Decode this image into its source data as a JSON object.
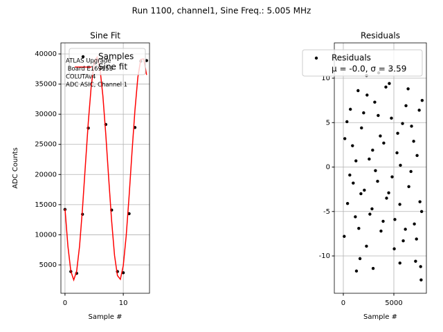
{
  "title": "Run 1100, channel1, Sine Freq.: 5.005 MHz",
  "chart_data": [
    {
      "type": "scatter",
      "title": "Sine Fit",
      "xlabel": "Sample #",
      "ylabel": "ADC Counts",
      "xlim": [
        -0.7,
        14.5
      ],
      "ylim": [
        295,
        41836
      ],
      "xticks": [
        0,
        10
      ],
      "yticks": [
        5000,
        10000,
        15000,
        20000,
        25000,
        30000,
        35000,
        40000
      ],
      "grid": true,
      "legend": "upper right",
      "annotation": [
        "ATLAS Upgrade",
        " Board E169153",
        "COLUTAv4",
        "ADC ASIC, Channel 1"
      ],
      "series": [
        {
          "name": "Samples",
          "kind": "scatter",
          "color": "#000000",
          "x": [
            0,
            1,
            2,
            3,
            4,
            5,
            6,
            7,
            8,
            9,
            10,
            11,
            12,
            13,
            14
          ],
          "values": [
            14200,
            3900,
            3600,
            13400,
            27700,
            38500,
            37800,
            28300,
            14100,
            3900,
            3700,
            13500,
            27800,
            38800,
            38900
          ]
        },
        {
          "name": "Sine fit",
          "kind": "line",
          "color": "#ff0000",
          "x": [
            0,
            0.5,
            1,
            1.5,
            2,
            2.5,
            3,
            3.5,
            4,
            4.5,
            5,
            5.5,
            6,
            6.5,
            7,
            7.5,
            8,
            8.5,
            9,
            9.5,
            10,
            10.5,
            11,
            11.5,
            12,
            12.5,
            13,
            13.5,
            14
          ],
          "values": [
            14321,
            8124,
            3962,
            2500,
            3962,
            8124,
            14321,
            21555,
            28696,
            34653,
            38464,
            39463,
            37595,
            33044,
            26643,
            19335,
            12323,
            6570,
            3221,
            2611,
            4887,
            9808,
            16430,
            23775,
            30657,
            36133,
            39093,
            39186,
            36522
          ]
        }
      ]
    },
    {
      "type": "scatter",
      "title": "Residuals",
      "xlabel": "Sample #",
      "xlim": [
        -890,
        8219
      ],
      "ylim": [
        -14.2,
        13.97
      ],
      "xticks": [
        0,
        5000
      ],
      "yticks": [
        -10,
        -5,
        0,
        5,
        10
      ],
      "grid": true,
      "legend": "upper right",
      "legend_text": "μ = -0.0, σ = 3.59",
      "series": [
        {
          "name": "Residuals",
          "kind": "scatter",
          "color": "#000000",
          "x": [
            150,
            420,
            700,
            980,
            1250,
            1530,
            1800,
            2080,
            2350,
            2630,
            2900,
            3180,
            3450,
            3730,
            4000,
            4280,
            4550,
            4830,
            5100,
            5380,
            5650,
            5930,
            6200,
            6480,
            6750,
            7030,
            7300,
            7580,
            7800,
            90,
            360,
            640,
            910,
            1190,
            1460,
            1740,
            2010,
            2290,
            2560,
            2840,
            3110,
            3390,
            3660,
            3940,
            4210,
            4490,
            4760,
            5040,
            5310,
            5590,
            5860,
            6140,
            6410,
            6690,
            6960,
            7240,
            7510,
            7750,
            1300,
            1650,
            2950,
            3500,
            5600,
            7700,
            7650,
            4600,
            2300,
            7150
          ],
          "values": [
            3.2,
            -4.1,
            6.5,
            -1.8,
            0.7,
            -6.9,
            4.4,
            -2.6,
            8.1,
            -5.3,
            1.9,
            -0.4,
            5.8,
            -7.2,
            2.7,
            -3.5,
            9.4,
            -1.1,
            -5.9,
            3.8,
            0.2,
            -8.3,
            6.9,
            -2.2,
            4.6,
            -6.4,
            1.3,
            -3.9,
            7.5,
            -7.8,
            5.1,
            -0.9,
            2.4,
            -5.6,
            8.6,
            -3.0,
            6.1,
            -8.9,
            0.9,
            -4.7,
            7.3,
            -1.6,
            3.5,
            -6.1,
            9.0,
            -2.9,
            5.5,
            -9.2,
            1.6,
            -4.2,
            4.9,
            -7.0,
            8.8,
            -0.5,
            2.9,
            -8.1,
            6.4,
            -5.0,
            -11.7,
            -10.3,
            -11.4,
            10.6,
            -10.8,
            -12.7,
            -11.2,
            10.9,
            10.3,
            -10.6
          ]
        }
      ]
    }
  ]
}
